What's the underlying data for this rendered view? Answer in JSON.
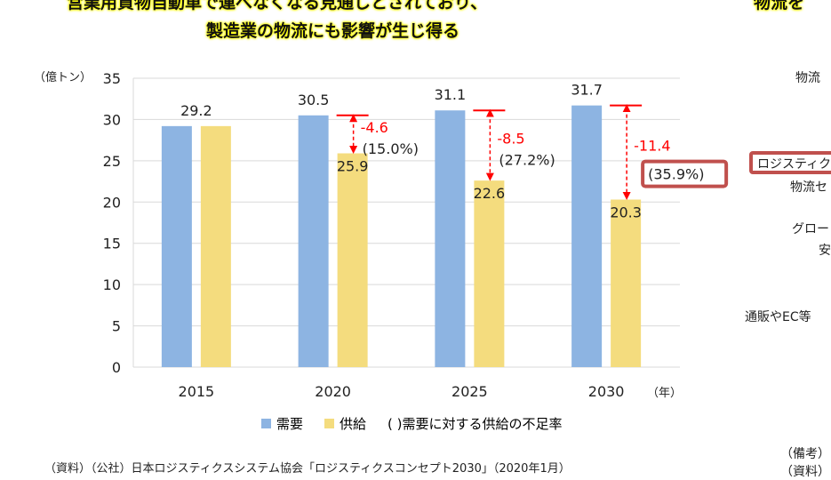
{
  "title_lines": [
    "営業用貨物自動車で運べなくなる見通しとされており、",
    "製造業の物流にも影響が生じ得る"
  ],
  "right_title_fragment": "物流を",
  "chart_data": {
    "type": "bar",
    "ylabel": "（億トン）",
    "xlabel": "（年）",
    "categories": [
      "2015",
      "2020",
      "2025",
      "2030"
    ],
    "ylim": [
      0,
      35
    ],
    "yticks": [
      0,
      5,
      10,
      15,
      20,
      25,
      30,
      35
    ],
    "grid": true,
    "legend_position": "bottom",
    "series": [
      {
        "name": "需要",
        "color": "#8DB4E2",
        "values": [
          29.2,
          30.5,
          31.1,
          31.7
        ]
      },
      {
        "name": "供給",
        "color": "#F4DC7E",
        "values": [
          29.2,
          25.9,
          22.6,
          20.3
        ]
      }
    ],
    "shortfall": [
      {
        "category": "2020",
        "value": "-4.6",
        "rate": "(15.0%)"
      },
      {
        "category": "2025",
        "value": "-8.5",
        "rate": "(27.2%)"
      },
      {
        "category": "2030",
        "value": "-11.4",
        "rate": "(35.9%)",
        "highlighted": true
      }
    ],
    "demand_labels": [
      "29.2",
      "30.5",
      "31.1",
      "31.7"
    ],
    "supply_labels": [
      "",
      "25.9",
      "22.6",
      "20.3"
    ],
    "legend_note": "( )需要に対する供給の不足率",
    "annotation_color": "#FF0000",
    "highlight_color": "#C0504D"
  },
  "source": "（資料）（公社）日本ロジスティクスシステム協会「ロジスティクスコンセプト2030」（2020年1月）",
  "right_panel": {
    "items": [
      "物流",
      "ロジスティク",
      "物流セ",
      "グロー",
      "安",
      "通販やEC等"
    ],
    "notes": [
      "（備考）",
      "（資料）"
    ]
  }
}
